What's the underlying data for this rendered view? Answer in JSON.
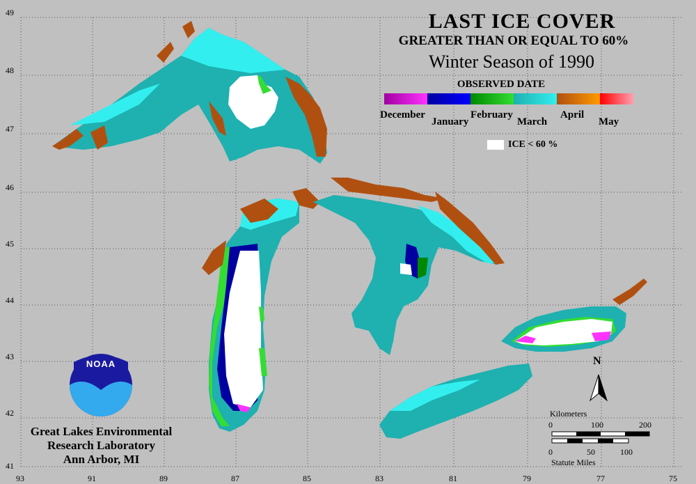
{
  "title": {
    "line1": "LAST ICE COVER",
    "line2": "GREATER THAN OR EQUAL TO 60%",
    "line3": "Winter Season of 1990"
  },
  "legend": {
    "heading": "OBSERVED DATE",
    "months": [
      "December",
      "January",
      "February",
      "March",
      "April",
      "May"
    ],
    "colors": {
      "december": "#a000a0",
      "december_late": "#ff33ff",
      "january": "#0000a0",
      "january_late": "#0000ff",
      "february": "#008800",
      "february_late": "#33dd33",
      "march": "#1fb0b0",
      "march_late": "#33eeee",
      "april": "#b05010",
      "april_late": "#ff9a00",
      "may": "#ff0000",
      "may_late": "#ffa0b0"
    },
    "ice_swatch_label": "ICE < 60 %"
  },
  "axes": {
    "lat_labels": [
      "49",
      "48",
      "47",
      "46",
      "45",
      "44",
      "43",
      "42",
      "41"
    ],
    "lon_labels": [
      "93",
      "91",
      "89",
      "87",
      "85",
      "83",
      "81",
      "79",
      "77",
      "75"
    ]
  },
  "logo": {
    "text": "NOAA"
  },
  "organization": {
    "line1": "Great Lakes Environmental",
    "line2": "Research Laboratory",
    "line3": "Ann Arbor, MI"
  },
  "scale": {
    "km_label": "Kilometers",
    "km_ticks": [
      "0",
      "100",
      "200"
    ],
    "mi_ticks": [
      "0",
      "50",
      "100"
    ],
    "mi_label": "Statute Miles"
  },
  "north": "N"
}
